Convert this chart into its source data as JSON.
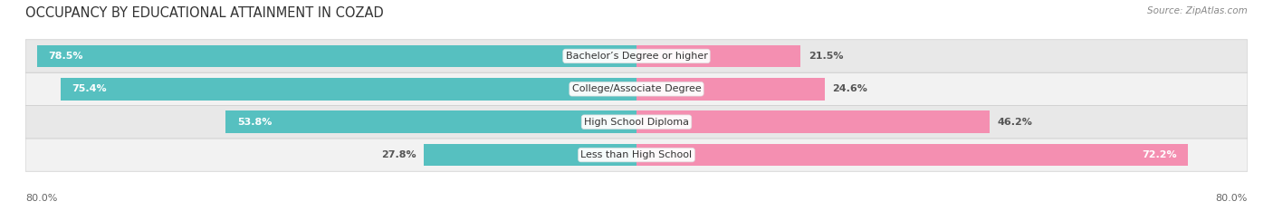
{
  "title": "OCCUPANCY BY EDUCATIONAL ATTAINMENT IN COZAD",
  "source": "Source: ZipAtlas.com",
  "categories": [
    "Less than High School",
    "High School Diploma",
    "College/Associate Degree",
    "Bachelor’s Degree or higher"
  ],
  "owner_values": [
    27.8,
    53.8,
    75.4,
    78.5
  ],
  "renter_values": [
    72.2,
    46.2,
    24.6,
    21.5
  ],
  "owner_color": "#56c0c0",
  "renter_color": "#f48fb1",
  "row_light_color": "#f0f0f0",
  "row_dark_color": "#e4e4e4",
  "xlim_left": -80.0,
  "xlim_right": 80.0,
  "x_left_label": "80.0%",
  "x_right_label": "80.0%",
  "title_fontsize": 10.5,
  "source_fontsize": 7.5,
  "value_fontsize": 8,
  "cat_fontsize": 8,
  "bar_height": 0.68,
  "figsize": [
    14.06,
    2.33
  ],
  "dpi": 100
}
